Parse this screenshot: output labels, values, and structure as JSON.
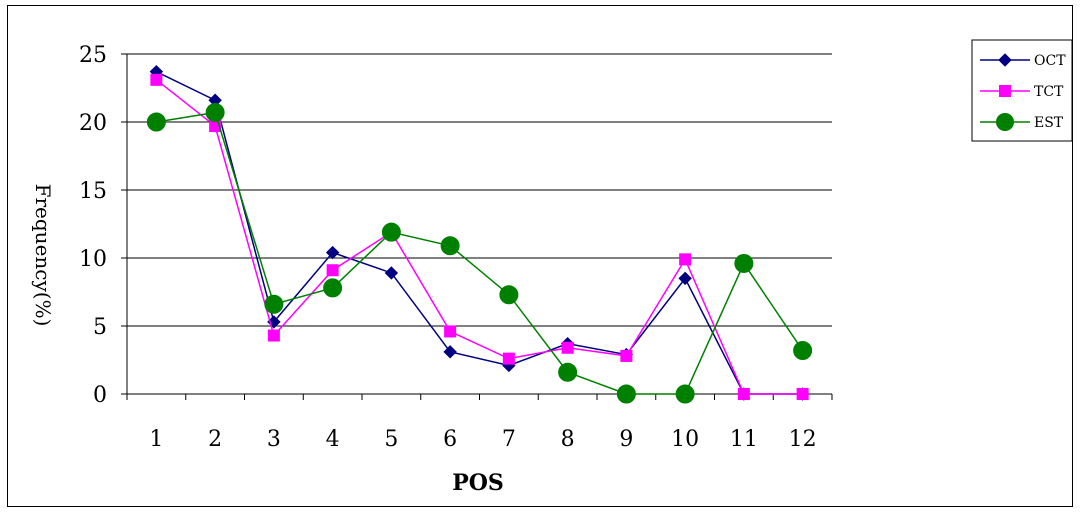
{
  "chart_data": {
    "type": "line",
    "categories": [
      "1",
      "2",
      "3",
      "4",
      "5",
      "6",
      "7",
      "8",
      "9",
      "10",
      "11",
      "12"
    ],
    "xlabel": "POS",
    "ylabel": "Frequency(%)",
    "ylim": [
      0,
      25
    ],
    "yticks": [
      "0",
      "5",
      "10",
      "15",
      "20",
      "25"
    ],
    "grid": "horizontal",
    "legend_position": "top-right",
    "series": [
      {
        "name": "OCT",
        "color": "#000080",
        "marker": "diamond",
        "values": [
          23.7,
          21.6,
          5.3,
          10.4,
          8.9,
          3.1,
          2.1,
          3.7,
          2.9,
          8.5,
          0,
          0
        ]
      },
      {
        "name": "TCT",
        "color": "#ff00ff",
        "marker": "square",
        "values": [
          23.1,
          19.7,
          4.3,
          9.1,
          11.9,
          4.6,
          2.6,
          3.4,
          2.8,
          9.9,
          0,
          0
        ]
      },
      {
        "name": "EST",
        "color": "#008000",
        "marker": "circle",
        "values": [
          20.0,
          20.7,
          6.6,
          7.8,
          11.9,
          10.9,
          7.3,
          1.6,
          0,
          0,
          9.6,
          3.2
        ]
      }
    ]
  }
}
